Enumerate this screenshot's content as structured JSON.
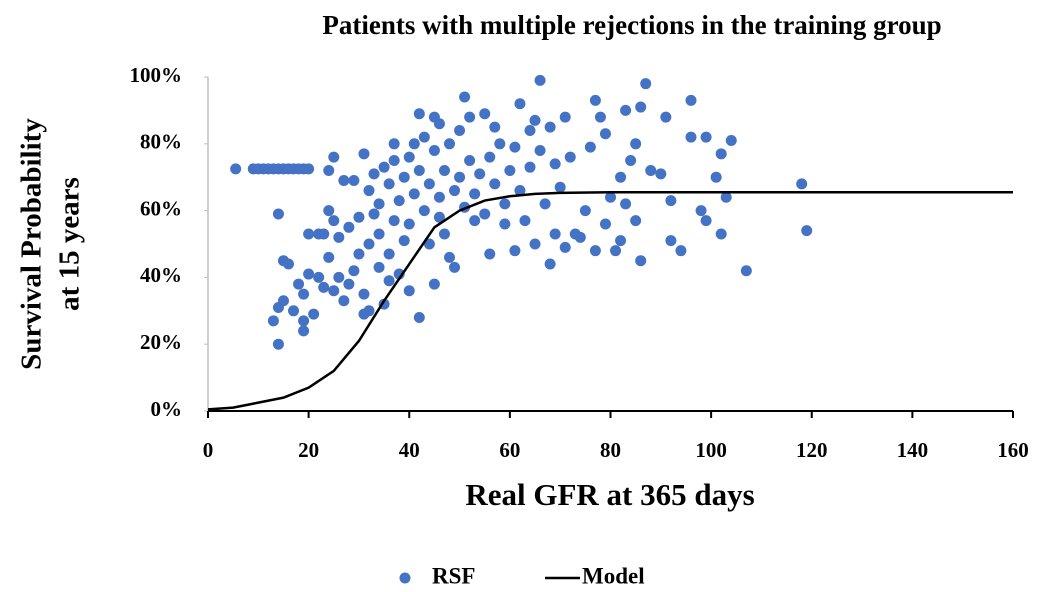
{
  "chart_data": {
    "type": "scatter",
    "title": "Patients with multiple rejections in the training group",
    "xlabel": "Real GFR at 365 days",
    "ylabel": [
      "Survival Probability",
      "at 15 years"
    ],
    "xlim": [
      0,
      160
    ],
    "xticks": [
      0,
      20,
      40,
      60,
      80,
      100,
      120,
      140,
      160
    ],
    "ylim": [
      0,
      100
    ],
    "yticks": [
      {
        "value": 0,
        "label": "0%"
      },
      {
        "value": 20,
        "label": "20%"
      },
      {
        "value": 40,
        "label": "40%"
      },
      {
        "value": 60,
        "label": "60%"
      },
      {
        "value": 80,
        "label": "80%"
      },
      {
        "value": 100,
        "label": "100%"
      }
    ],
    "series": [
      {
        "name": "RSF",
        "color": "#4472c4",
        "kind": "scatter",
        "x": [
          5.5,
          9,
          10,
          11,
          12,
          13,
          14,
          15,
          16,
          17,
          18,
          19,
          20,
          13,
          14,
          14,
          14,
          15,
          15,
          16,
          17,
          18,
          19,
          19,
          19,
          20,
          20,
          21,
          22,
          22,
          23,
          23,
          24,
          24,
          24,
          25,
          25,
          25,
          26,
          26,
          27,
          27,
          28,
          28,
          29,
          29,
          30,
          30,
          31,
          31,
          31,
          32,
          32,
          32,
          33,
          33,
          34,
          34,
          34,
          35,
          35,
          36,
          36,
          36,
          37,
          37,
          37,
          38,
          38,
          39,
          39,
          40,
          40,
          40,
          41,
          41,
          42,
          42,
          42,
          43,
          43,
          44,
          44,
          45,
          45,
          45,
          46,
          46,
          46,
          47,
          47,
          48,
          48,
          49,
          49,
          50,
          50,
          51,
          51,
          52,
          52,
          53,
          53,
          54,
          55,
          55,
          56,
          56,
          57,
          57,
          58,
          59,
          59,
          60,
          61,
          61,
          62,
          62,
          63,
          64,
          64,
          65,
          65,
          66,
          66,
          67,
          68,
          68,
          69,
          69,
          70,
          71,
          71,
          72,
          73,
          74,
          75,
          76,
          77,
          77,
          78,
          79,
          79,
          80,
          81,
          82,
          82,
          83,
          83,
          84,
          85,
          85,
          86,
          86,
          87,
          88,
          90,
          91,
          92,
          92,
          94,
          96,
          96,
          98,
          99,
          99,
          101,
          102,
          102,
          103,
          104,
          107,
          118,
          119
        ],
        "values": [
          72.5,
          72.5,
          72.5,
          72.5,
          72.5,
          72.5,
          72.5,
          72.5,
          72.5,
          72.5,
          72.5,
          72.5,
          72.5,
          27,
          20,
          31,
          59,
          33,
          45,
          44,
          30,
          38,
          24,
          27,
          35,
          41,
          53,
          29,
          53,
          40,
          37,
          53,
          46,
          60,
          72,
          76,
          36,
          57,
          40,
          52,
          33,
          69,
          55,
          38,
          42,
          69,
          47,
          58,
          29,
          35,
          77,
          30,
          50,
          66,
          59,
          71,
          43,
          53,
          62,
          32,
          73,
          39,
          47,
          68,
          80,
          57,
          75,
          41,
          63,
          51,
          70,
          36,
          56,
          76,
          65,
          80,
          28,
          89,
          72,
          60,
          82,
          50,
          68,
          88,
          38,
          78,
          58,
          64,
          86,
          72,
          53,
          46,
          80,
          43,
          66,
          84,
          70,
          61,
          94,
          88,
          75,
          57,
          65,
          71,
          59,
          89,
          47,
          76,
          85,
          68,
          80,
          56,
          62,
          72,
          48,
          79,
          92,
          66,
          57,
          84,
          73,
          50,
          87,
          99,
          78,
          62,
          85,
          44,
          53,
          74,
          67,
          49,
          88,
          76,
          53,
          52,
          60,
          79,
          48,
          93,
          88,
          56,
          83,
          64,
          48,
          51,
          70,
          90,
          62,
          75,
          80,
          57,
          45,
          91,
          98,
          72,
          71,
          88,
          51,
          63,
          48,
          93,
          82,
          60,
          57,
          82,
          70,
          53,
          77,
          64,
          81,
          42,
          68,
          54
        ]
      },
      {
        "name": "Model",
        "color": "#000000",
        "kind": "line",
        "x": [
          0,
          5,
          10,
          15,
          20,
          25,
          30,
          35,
          40,
          45,
          50,
          55,
          60,
          65,
          70,
          80,
          100,
          120,
          140,
          160
        ],
        "values": [
          0.5,
          1,
          2.5,
          4,
          7,
          12,
          21,
          33,
          44,
          55,
          60,
          63,
          64.3,
          65,
          65.3,
          65.5,
          65.5,
          65.5,
          65.5,
          65.5
        ]
      }
    ]
  }
}
